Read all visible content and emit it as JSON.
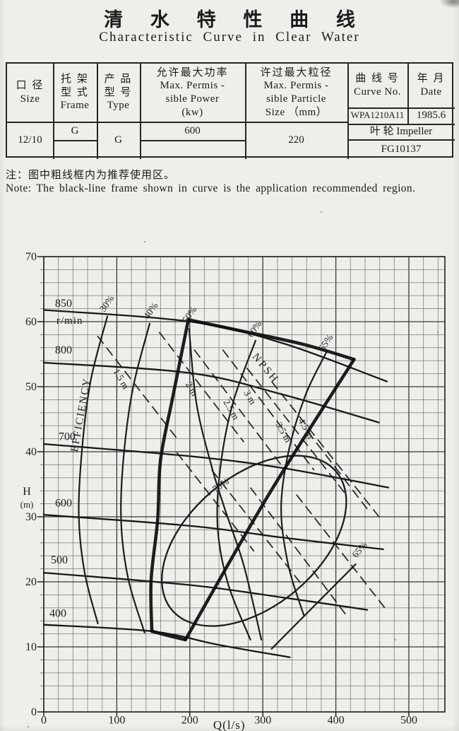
{
  "title": {
    "zh": "清 水 特 性 曲 线",
    "en": "Characteristic Curve in Clear Water"
  },
  "note": {
    "zh": "注：图中粗线框内为推荐使用区。",
    "en": "Note: The black-line frame shown in curve is the application recommended region."
  },
  "table": {
    "headers": [
      {
        "zh": [
          "口 径"
        ],
        "en": [
          "Size"
        ]
      },
      {
        "zh": [
          "托 架",
          "型 式"
        ],
        "en": [
          "Frame"
        ]
      },
      {
        "zh": [
          "产 品",
          "型 号"
        ],
        "en": [
          "Type"
        ]
      },
      {
        "zh": [
          "允许最大功率"
        ],
        "en": [
          "Max. Permis -",
          "sible Power",
          "(kw)"
        ]
      },
      {
        "zh": [
          "许过最大粒径"
        ],
        "en": [
          "Max. Permis -",
          "sible Particle",
          "Size （mm）"
        ]
      },
      {
        "zh": [
          "曲 线 号"
        ],
        "en": [
          "Curve No."
        ]
      },
      {
        "zh": [
          "年 月"
        ],
        "en": [
          "Date"
        ]
      }
    ],
    "values": {
      "size": "12/10",
      "frame": "G",
      "type": "G",
      "power": "600",
      "particle": "220",
      "curve_no": "WPA1210A11",
      "date": "1985.6",
      "impeller": "叶 轮  Impeller",
      "impeller_no": "FG10137"
    }
  },
  "chart_data": {
    "type": "line",
    "title": "",
    "xlabel": "Q(l/s)",
    "ylabel_lines": [
      "H",
      "(m)"
    ],
    "xlim": [
      0,
      549
    ],
    "ylim": [
      0,
      70
    ],
    "x_ticks": [
      0,
      100,
      200,
      300,
      400,
      500
    ],
    "y_ticks": [
      0,
      10,
      20,
      30,
      40,
      50,
      60,
      70
    ],
    "grid": {
      "minor_x_step": 20,
      "minor_y_step": 2,
      "major_x_step": 100,
      "major_y_step": 10,
      "grid_on": true
    },
    "speed_unit": "r/min",
    "speed_curves": [
      {
        "label": "850",
        "unit_label": "r/min",
        "points": [
          [
            0,
            61.8
          ],
          [
            201,
            60.0
          ],
          [
            327,
            56.7
          ],
          [
            470,
            50.8
          ]
        ],
        "label_at": [
          15.5,
          62.3
        ],
        "unit_at": [
          17.4,
          59.7
        ]
      },
      {
        "label": "800",
        "points": [
          [
            0,
            53.7
          ],
          [
            201,
            52.1
          ],
          [
            327,
            48.8
          ],
          [
            459,
            44.5
          ]
        ],
        "label_at": [
          15.5,
          55.1
        ]
      },
      {
        "label": "700",
        "points": [
          [
            0,
            41.2
          ],
          [
            201,
            39.3
          ],
          [
            327,
            37.5
          ],
          [
            472,
            34.5
          ]
        ],
        "label_at": [
          20.3,
          41.8
        ]
      },
      {
        "label": "600",
        "points": [
          [
            0,
            30.3
          ],
          [
            201,
            28.6
          ],
          [
            327,
            26.8
          ],
          [
            465,
            25.0
          ]
        ],
        "label_at": [
          15.5,
          31.6
        ]
      },
      {
        "label": "500",
        "points": [
          [
            0,
            21.4
          ],
          [
            201,
            19.5
          ],
          [
            327,
            17.6
          ],
          [
            443,
            15.7
          ]
        ],
        "label_at": [
          9.7,
          22.8
        ]
      },
      {
        "label": "400",
        "points": [
          [
            0,
            13.4
          ],
          [
            148,
            12.4
          ],
          [
            240,
            10.3
          ],
          [
            337,
            8.4
          ]
        ],
        "label_at": [
          7.7,
          14.6
        ]
      }
    ],
    "efficiency_axis_label": {
      "text": "EFFICIENCY",
      "at": [
        46,
        39.9
      ],
      "rot": -80
    },
    "efficiency_curves": [
      {
        "label": "30%",
        "points": [
          [
            87,
            60.8
          ],
          [
            64,
            50.8
          ],
          [
            52,
            39.9
          ],
          [
            48,
            30.1
          ],
          [
            56,
            21.4
          ],
          [
            74,
            13.6
          ]
        ],
        "label_at": [
          83,
          61.4
        ],
        "label_rot": -55
      },
      {
        "label": "40%",
        "points": [
          [
            145,
            59.7
          ],
          [
            122,
            49.7
          ],
          [
            109,
            38.8
          ],
          [
            106,
            29.0
          ],
          [
            116,
            20.3
          ],
          [
            138,
            12.2
          ]
        ],
        "label_at": [
          143,
          60.3
        ],
        "label_rot": -55
      },
      {
        "label": "50%",
        "points": [
          [
            199,
            58.9
          ],
          [
            209,
            47.5
          ],
          [
            230,
            37.7
          ],
          [
            248,
            31.2
          ],
          [
            274,
            22.5
          ],
          [
            298,
            11.1
          ]
        ],
        "label_at": [
          196,
          59.7
        ],
        "label_rot": -55
      },
      {
        "label": "60%",
        "points": [
          [
            290,
            57.1
          ],
          [
            259,
            47.5
          ],
          [
            242,
            37.7
          ],
          [
            238,
            28.5
          ],
          [
            252,
            19.8
          ],
          [
            283,
            11.1
          ]
        ],
        "label_at": [
          285,
          57.5
        ],
        "label_rot": -55
      },
      {
        "label": "65%",
        "points": [
          [
            387,
            55.3
          ],
          [
            358,
            48.6
          ],
          [
            335,
            39.9
          ],
          [
            325,
            31.2
          ],
          [
            335,
            22.5
          ],
          [
            356,
            14.9
          ]
        ],
        "label_at": [
          383,
          55.4
        ],
        "label_rot": -55
      },
      {
        "label": "65%",
        "points": [
          [
            312,
            9.7
          ],
          [
            366,
            15.8
          ],
          [
            427,
            22.7
          ]
        ],
        "label_at": [
          428,
          23.6
        ],
        "label_rot": -50
      }
    ],
    "efficiency_region_70": {
      "label": "70%",
      "center": [
        288,
        26.3
      ],
      "rx_q": 147,
      "ry_h": 10,
      "rotation_deg": -40,
      "label_at": [
        235,
        33.7
      ],
      "label_rot": -35
    },
    "npsh": {
      "title": {
        "text": "NPSH",
        "at": [
          285,
          54.6
        ],
        "rot": 50
      },
      "lines": [
        {
          "label": "1.5 m",
          "points": [
            [
              73.5,
              57.8
            ],
            [
              182,
              42.1
            ]
          ],
          "label_at": [
            94.8,
            52.4
          ],
          "label_rot": 60
        },
        {
          "label": "2 m",
          "points": [
            [
              158,
              58.4
            ],
            [
              274,
              41.5
            ]
          ],
          "label_at": [
            194,
            50.4
          ],
          "label_rot": 60
        },
        {
          "label": "2.5 m",
          "points": [
            [
              206,
              55.7
            ],
            [
              327,
              37.7
            ]
          ],
          "label_at": [
            245.6,
            47.7
          ],
          "label_rot": 60
        },
        {
          "label": "3 m",
          "points": [
            [
              245,
              55.7
            ],
            [
              370,
              37.2
            ]
          ],
          "label_at": [
            273.7,
            49.1
          ],
          "label_rot": 60
        },
        {
          "label": "3.5 m",
          "points": [
            [
              278,
              52.9
            ],
            [
              414,
              33.4
            ]
          ],
          "label_at": [
            317.2,
            44.2
          ],
          "label_rot": 60
        },
        {
          "label": "4.5 m",
          "points": [
            [
              312,
              50.8
            ],
            [
              462,
              29.6
            ]
          ],
          "label_at": [
            348.2,
            44.8
          ],
          "label_rot": 60
        }
      ],
      "extra_dashes": [
        [
          [
            182,
            39.9
          ],
          [
            288,
            24.7
          ]
        ],
        [
          [
            230,
            37.2
          ],
          [
            356,
            19.2
          ]
        ],
        [
          [
            283,
            34.5
          ],
          [
            414,
            14.9
          ]
        ],
        [
          [
            346,
            33.4
          ],
          [
            467,
            16.0
          ]
        ],
        [
          [
            361,
            43.2
          ],
          [
            443,
            31.2
          ]
        ]
      ]
    },
    "recommended_region": {
      "left": [
        [
          198,
          60.3
        ],
        [
          177,
          48.6
        ],
        [
          160,
          38.8
        ],
        [
          156,
          29.6
        ],
        [
          147,
          20.3
        ],
        [
          148,
          12.4
        ]
      ],
      "top": [
        [
          198,
          60.3
        ],
        [
          278,
          58.4
        ],
        [
          356,
          56.5
        ],
        [
          425,
          54.2
        ]
      ],
      "right": [
        [
          425,
          54.2
        ],
        [
          308,
          33.4
        ],
        [
          194,
          11.1
        ]
      ],
      "bottom": [
        [
          148,
          12.4
        ],
        [
          172,
          11.7
        ],
        [
          194,
          11.1
        ]
      ]
    }
  }
}
